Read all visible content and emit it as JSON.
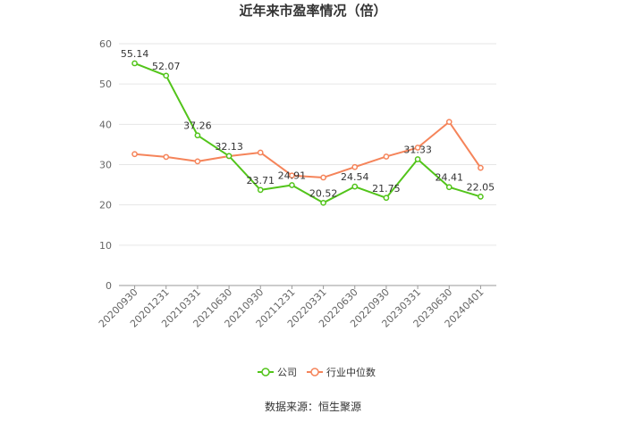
{
  "chart_data": {
    "type": "line",
    "title": "近年来市盈率情况（倍）",
    "categories": [
      "20200930",
      "20201231",
      "20210331",
      "20210630",
      "20210930",
      "20211231",
      "20220331",
      "20220630",
      "20220930",
      "20230331",
      "20230630",
      "20240401"
    ],
    "ylim": [
      0,
      60
    ],
    "yticks": [
      0,
      10,
      20,
      30,
      40,
      50,
      60
    ],
    "grid": true,
    "legend_position": "bottom",
    "series": [
      {
        "name": "公司",
        "color": "#52c41a",
        "values": [
          55.14,
          52.07,
          37.26,
          32.13,
          23.71,
          24.91,
          20.52,
          24.54,
          21.75,
          31.33,
          24.41,
          22.05
        ],
        "labels": [
          "55.14",
          "52.07",
          "37.26",
          "32.13",
          "23.71",
          "24.91",
          "20.52",
          "24.54",
          "21.75",
          "31.33",
          "24.41",
          "22.05"
        ]
      },
      {
        "name": "行业中位数",
        "color": "#f5845a",
        "values": [
          32.6,
          31.9,
          30.8,
          32.1,
          33.0,
          27.3,
          26.8,
          29.4,
          32.0,
          34.2,
          40.6,
          29.2
        ]
      }
    ]
  },
  "source_text": "数据来源：恒生聚源"
}
